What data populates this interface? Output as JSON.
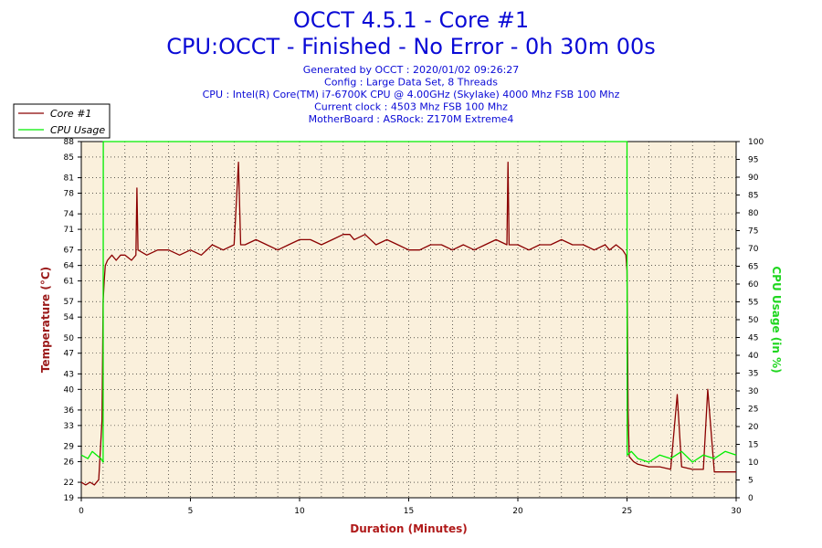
{
  "header": {
    "title": "OCCT 4.5.1 - Core #1",
    "status": "CPU:OCCT - Finished - No Error - 0h 30m 00s",
    "info": [
      "Generated by OCCT : 2020/01/02 09:26:27",
      "Config : Large Data Set, 8 Threads",
      "CPU : Intel(R) Core(TM) i7-6700K CPU @ 4.00GHz (Skylake) 4000 Mhz FSB 100 Mhz",
      "Current clock : 4503 Mhz FSB 100 Mhz",
      "MotherBoard : ASRock: Z170M Extreme4"
    ]
  },
  "legend": {
    "items": [
      {
        "label": "Core #1",
        "color": "#8b0000"
      },
      {
        "label": "CPU Usage",
        "color": "#00ee00"
      }
    ]
  },
  "colors": {
    "plot_background": "#faf0dc",
    "grid": "#000000",
    "temperature": "#8b0000",
    "cpu_usage": "#00ee00"
  },
  "chart_data": {
    "type": "line",
    "xlabel": "Duration (Minutes)",
    "ylabel": "Temperature (°C)",
    "ylabel_right": "CPU Usage (in %)",
    "x_range": [
      0,
      30
    ],
    "y_range": [
      19,
      88
    ],
    "y_right_range": [
      0,
      100
    ],
    "x_ticks": [
      0,
      5,
      10,
      15,
      20,
      25,
      30
    ],
    "y_ticks": [
      19,
      22,
      26,
      29,
      33,
      36,
      40,
      43,
      47,
      50,
      54,
      57,
      61,
      64,
      67,
      71,
      74,
      78,
      81,
      85,
      88
    ],
    "y_right_ticks": [
      0,
      5,
      10,
      15,
      20,
      25,
      30,
      35,
      40,
      45,
      50,
      55,
      60,
      65,
      70,
      75,
      80,
      85,
      90,
      95,
      100
    ],
    "grid": true,
    "legend_position": "top-left",
    "series": [
      {
        "name": "Core #1",
        "axis": "left",
        "x": [
          0,
          0.2,
          0.4,
          0.6,
          0.8,
          0.95,
          1.0,
          1.05,
          1.1,
          1.2,
          1.4,
          1.6,
          1.8,
          2.0,
          2.3,
          2.5,
          2.55,
          2.6,
          3.0,
          3.5,
          4.0,
          4.5,
          5.0,
          5.5,
          6.0,
          6.5,
          7.0,
          7.2,
          7.3,
          7.5,
          8.0,
          8.5,
          9.0,
          9.5,
          10.0,
          10.5,
          11.0,
          11.5,
          12.0,
          12.3,
          12.5,
          13.0,
          13.5,
          14.0,
          14.5,
          15.0,
          15.5,
          16.0,
          16.5,
          17.0,
          17.5,
          18.0,
          18.5,
          19.0,
          19.5,
          19.55,
          19.6,
          20.0,
          20.5,
          21.0,
          21.5,
          22.0,
          22.5,
          23.0,
          23.5,
          24.0,
          24.2,
          24.5,
          24.8,
          24.95,
          25.0,
          25.05,
          25.1,
          25.3,
          25.5,
          26.0,
          26.5,
          27.0,
          27.3,
          27.5,
          28.0,
          28.5,
          28.7,
          29.0,
          29.5,
          30.0
        ],
        "y": [
          22,
          21.5,
          22,
          21.5,
          22.5,
          34,
          57,
          61,
          64,
          65,
          66,
          65,
          66,
          66,
          65,
          66,
          79,
          67,
          66,
          67,
          67,
          66,
          67,
          66,
          68,
          67,
          68,
          84,
          68,
          68,
          69,
          68,
          67,
          68,
          69,
          69,
          68,
          69,
          70,
          70,
          69,
          70,
          68,
          69,
          68,
          67,
          67,
          68,
          68,
          67,
          68,
          67,
          68,
          69,
          68,
          84,
          68,
          68,
          67,
          68,
          68,
          69,
          68,
          68,
          67,
          68,
          67,
          68,
          67,
          66,
          63,
          36,
          27,
          26,
          25.5,
          25,
          25,
          24.5,
          39,
          25,
          24.5,
          24.5,
          40,
          24,
          24,
          24
        ]
      },
      {
        "name": "CPU Usage",
        "axis": "right",
        "x": [
          0,
          0.3,
          0.5,
          0.7,
          0.9,
          1.0,
          1.01,
          25.0,
          25.01,
          25.2,
          25.5,
          26.0,
          26.5,
          27.0,
          27.5,
          28.0,
          28.5,
          29.0,
          29.5,
          30.0
        ],
        "y": [
          12,
          11,
          13,
          12,
          11,
          10,
          100,
          100,
          12,
          13,
          11,
          10,
          12,
          11,
          13,
          10,
          12,
          11,
          13,
          12
        ]
      }
    ]
  }
}
